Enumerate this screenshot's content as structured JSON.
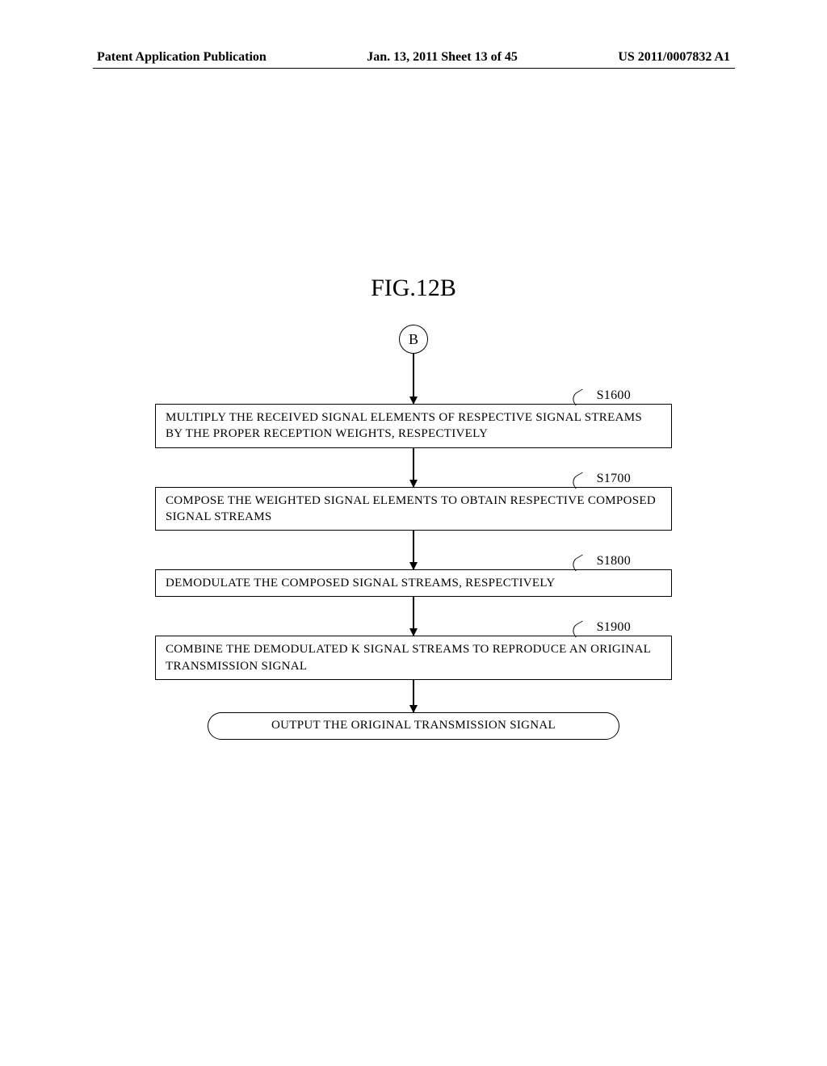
{
  "header": {
    "left": "Patent Application Publication",
    "center": "Jan. 13, 2011  Sheet 13 of 45",
    "right": "US 2011/0007832 A1"
  },
  "figure": {
    "title": "FIG.12B",
    "connector": "B",
    "steps": [
      {
        "label": "S1600",
        "text": "MULTIPLY THE RECEIVED SIGNAL ELEMENTS OF RESPECTIVE SIGNAL STREAMS BY THE PROPER RECEPTION WEIGHTS, RESPECTIVELY"
      },
      {
        "label": "S1700",
        "text": "COMPOSE THE WEIGHTED SIGNAL ELEMENTS TO OBTAIN RESPECTIVE COMPOSED SIGNAL STREAMS"
      },
      {
        "label": "S1800",
        "text": "DEMODULATE THE COMPOSED SIGNAL STREAMS, RESPECTIVELY"
      },
      {
        "label": "S1900",
        "text": "COMBINE THE DEMODULATED K SIGNAL STREAMS TO REPRODUCE AN ORIGINAL TRANSMISSION SIGNAL"
      }
    ],
    "terminator": "OUTPUT THE ORIGINAL TRANSMISSION SIGNAL"
  },
  "layout": {
    "arrow_height_first": 62,
    "arrow_height_between": 48,
    "arrow_height_last": 40
  }
}
